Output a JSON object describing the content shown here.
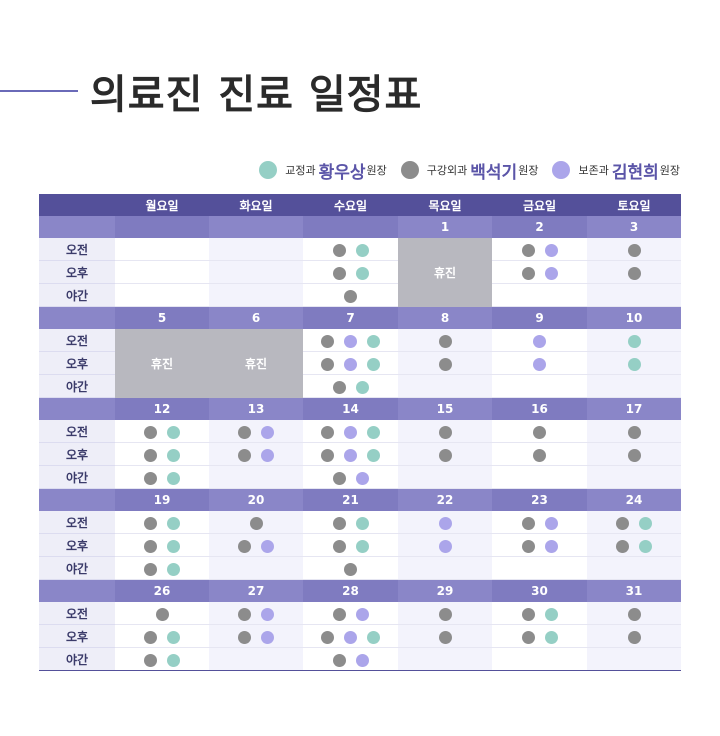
{
  "title": "의료진 진료 일정표",
  "colors": {
    "green": "#95cfc5",
    "gray": "#8c8c8c",
    "purple": "#aba5ea",
    "header": "#54509a",
    "dateRow": "#8a86c8",
    "closed": "#b8b8bf"
  },
  "legend": [
    {
      "key": "green",
      "dept": "교정과",
      "name": "황우상",
      "role": "원장"
    },
    {
      "key": "gray",
      "dept": "구강외과",
      "name": "백석기",
      "role": "원장"
    },
    {
      "key": "purple",
      "dept": "보존과",
      "name": "김현희",
      "role": "원장"
    }
  ],
  "weekdays": [
    "월요일",
    "화요일",
    "수요일",
    "목요일",
    "금요일",
    "토요일"
  ],
  "periods": [
    "오전",
    "오후",
    "야간"
  ],
  "closed_label": "휴진",
  "weeks": [
    {
      "dates": [
        "",
        "",
        "",
        "1",
        "2",
        "3"
      ],
      "days": [
        {
          "empty": true
        },
        {
          "empty": true
        },
        {
          "slots": [
            [
              "gray",
              "green"
            ],
            [
              "gray",
              "green"
            ],
            [
              "gray"
            ]
          ]
        },
        {
          "closed": true
        },
        {
          "slots": [
            [
              "gray",
              "purple"
            ],
            [
              "gray",
              "purple"
            ],
            []
          ]
        },
        {
          "slots": [
            [
              "gray"
            ],
            [
              "gray"
            ],
            []
          ]
        }
      ]
    },
    {
      "dates": [
        "5",
        "6",
        "7",
        "8",
        "9",
        "10"
      ],
      "days": [
        {
          "closed": true
        },
        {
          "closed": true
        },
        {
          "slots": [
            [
              "gray",
              "purple",
              "green"
            ],
            [
              "gray",
              "purple",
              "green"
            ],
            [
              "gray",
              "green"
            ]
          ]
        },
        {
          "slots": [
            [
              "gray"
            ],
            [
              "gray"
            ],
            []
          ]
        },
        {
          "slots": [
            [
              "purple"
            ],
            [
              "purple"
            ],
            []
          ]
        },
        {
          "slots": [
            [
              "green"
            ],
            [
              "green"
            ],
            []
          ]
        }
      ]
    },
    {
      "dates": [
        "12",
        "13",
        "14",
        "15",
        "16",
        "17"
      ],
      "days": [
        {
          "slots": [
            [
              "gray",
              "green"
            ],
            [
              "gray",
              "green"
            ],
            [
              "gray",
              "green"
            ]
          ]
        },
        {
          "slots": [
            [
              "gray",
              "purple"
            ],
            [
              "gray",
              "purple"
            ],
            []
          ]
        },
        {
          "slots": [
            [
              "gray",
              "purple",
              "green"
            ],
            [
              "gray",
              "purple",
              "green"
            ],
            [
              "gray",
              "purple"
            ]
          ]
        },
        {
          "slots": [
            [
              "gray"
            ],
            [
              "gray"
            ],
            []
          ]
        },
        {
          "slots": [
            [
              "gray"
            ],
            [
              "gray"
            ],
            []
          ]
        },
        {
          "slots": [
            [
              "gray"
            ],
            [
              "gray"
            ],
            []
          ]
        }
      ]
    },
    {
      "dates": [
        "19",
        "20",
        "21",
        "22",
        "23",
        "24"
      ],
      "days": [
        {
          "slots": [
            [
              "gray",
              "green"
            ],
            [
              "gray",
              "green"
            ],
            [
              "gray",
              "green"
            ]
          ]
        },
        {
          "slots": [
            [
              "gray"
            ],
            [
              "gray",
              "purple"
            ],
            []
          ]
        },
        {
          "slots": [
            [
              "gray",
              "green"
            ],
            [
              "gray",
              "green"
            ],
            [
              "gray"
            ]
          ]
        },
        {
          "slots": [
            [
              "purple"
            ],
            [
              "purple"
            ],
            []
          ]
        },
        {
          "slots": [
            [
              "gray",
              "purple"
            ],
            [
              "gray",
              "purple"
            ],
            []
          ]
        },
        {
          "slots": [
            [
              "gray",
              "green"
            ],
            [
              "gray",
              "green"
            ],
            []
          ]
        }
      ]
    },
    {
      "dates": [
        "26",
        "27",
        "28",
        "29",
        "30",
        "31"
      ],
      "days": [
        {
          "slots": [
            [
              "gray"
            ],
            [
              "gray",
              "green"
            ],
            [
              "gray",
              "green"
            ]
          ]
        },
        {
          "slots": [
            [
              "gray",
              "purple"
            ],
            [
              "gray",
              "purple"
            ],
            []
          ]
        },
        {
          "slots": [
            [
              "gray",
              "purple"
            ],
            [
              "gray",
              "purple",
              "green"
            ],
            [
              "gray",
              "purple"
            ]
          ]
        },
        {
          "slots": [
            [
              "gray"
            ],
            [
              "gray"
            ],
            []
          ]
        },
        {
          "slots": [
            [
              "gray",
              "green"
            ],
            [
              "gray",
              "green"
            ],
            []
          ]
        },
        {
          "slots": [
            [
              "gray"
            ],
            [
              "gray"
            ],
            []
          ]
        }
      ]
    }
  ]
}
